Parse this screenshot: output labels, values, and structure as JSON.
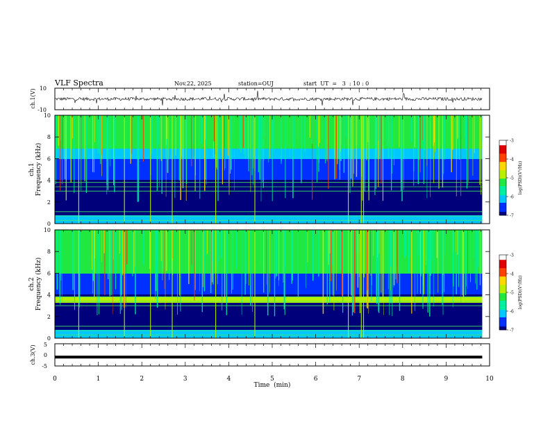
{
  "header": {
    "title": "VLF Spectra",
    "date": "Nov.22, 2025",
    "station": "station=OUJ",
    "start_ut": "start  UT  =   3  : 10 : 0"
  },
  "chart_data": [
    {
      "type": "line",
      "id": "ch1-waveform",
      "ylabel": "ch.1(V)",
      "ylim": [
        -10,
        10
      ],
      "yticks": [
        "10",
        "-10"
      ],
      "xlim": [
        0,
        10
      ],
      "baseline": 0,
      "noise_amplitude": 1.5
    },
    {
      "type": "heatmap",
      "id": "ch1-spectrogram",
      "ylabel": "ch.1",
      "ylabel2": "Frequency  (kHz)",
      "ylim": [
        0,
        10
      ],
      "yticks": [
        "0",
        "2",
        "4",
        "6",
        "8",
        "10"
      ],
      "xlim": [
        0,
        10
      ]
    },
    {
      "type": "heatmap",
      "id": "ch2-spectrogram",
      "ylabel": "ch.2",
      "ylabel2": "Frequency  (kHz)",
      "ylim": [
        0,
        10
      ],
      "yticks": [
        "0",
        "2",
        "4",
        "6",
        "8",
        "10"
      ],
      "xlim": [
        0,
        10
      ]
    },
    {
      "type": "line",
      "id": "ch3-waveform",
      "ylabel": "ch.3(V)",
      "ylim": [
        -5,
        5
      ],
      "yticks": [
        "5",
        "0",
        "-5"
      ],
      "xlim": [
        0,
        10
      ],
      "baseline": -1
    }
  ],
  "xaxis": {
    "label": "Time  (min)",
    "ticks": [
      "0",
      "1",
      "2",
      "3",
      "4",
      "5",
      "6",
      "7",
      "8",
      "9",
      "10"
    ],
    "data_end": 9.83
  },
  "colorbar": {
    "label": "log(PSD)(V²/Hz)",
    "range": [
      -7,
      -3
    ],
    "ticks": [
      "-3",
      "-4",
      "-5",
      "-6",
      "-7"
    ],
    "colors": [
      "#00007a",
      "#0030ff",
      "#00c8ff",
      "#00f0a0",
      "#20e840",
      "#b8f000",
      "#ffd800",
      "#ff4000",
      "#e00000",
      "#ffffff"
    ]
  }
}
